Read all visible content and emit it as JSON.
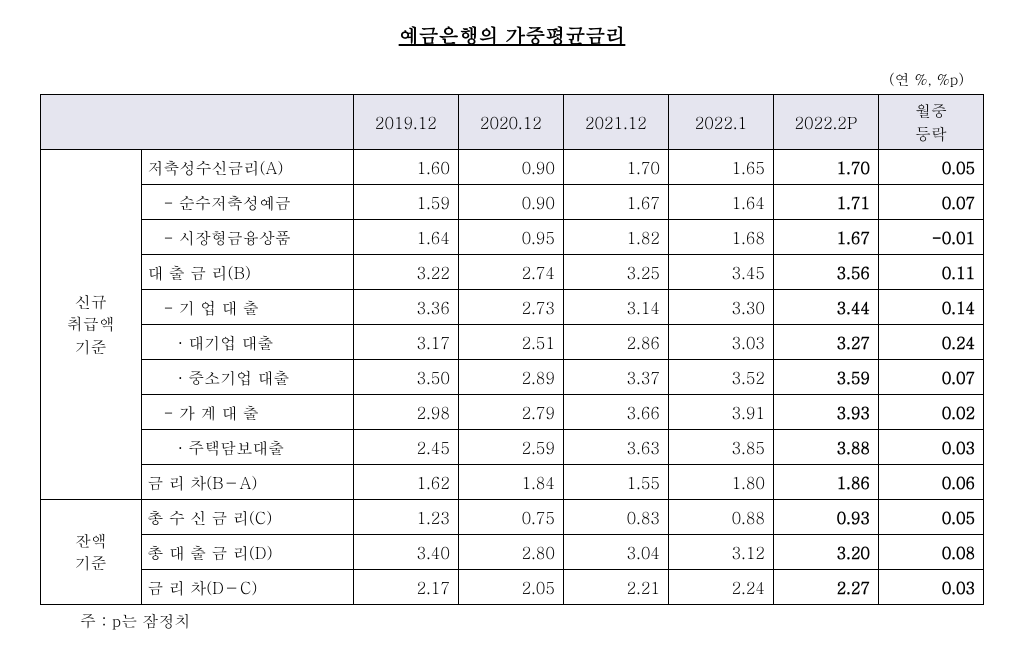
{
  "title": "예금은행의 가중평균금리",
  "unit": "(연 %, %p)",
  "columns": [
    "2019.12",
    "2020.12",
    "2021.12",
    "2022.1",
    "2022.2P",
    "월중\n등락"
  ],
  "section1_label": "신규\n취급액\n기준",
  "section2_label": "잔액\n기준",
  "rows1": [
    {
      "label": "저축성수신금리(A)",
      "indent": 0,
      "v": [
        "1.60",
        "0.90",
        "1.70",
        "1.65",
        "1.70",
        "0.05"
      ]
    },
    {
      "label": "- 순수저축성예금",
      "indent": 1,
      "v": [
        "1.59",
        "0.90",
        "1.67",
        "1.64",
        "1.71",
        "0.07"
      ]
    },
    {
      "label": "- 시장형금융상품",
      "indent": 1,
      "v": [
        "1.64",
        "0.95",
        "1.82",
        "1.68",
        "1.67",
        "-0.01"
      ]
    },
    {
      "label": "대 출 금 리(B)",
      "indent": 0,
      "v": [
        "3.22",
        "2.74",
        "3.25",
        "3.45",
        "3.56",
        "0.11"
      ]
    },
    {
      "label": "- 기 업 대 출",
      "indent": 1,
      "v": [
        "3.36",
        "2.73",
        "3.14",
        "3.30",
        "3.44",
        "0.14"
      ]
    },
    {
      "label": "· 대기업 대출",
      "indent": 2,
      "v": [
        "3.17",
        "2.51",
        "2.86",
        "3.03",
        "3.27",
        "0.24"
      ]
    },
    {
      "label": "· 중소기업 대출",
      "indent": 2,
      "v": [
        "3.50",
        "2.89",
        "3.37",
        "3.52",
        "3.59",
        "0.07"
      ]
    },
    {
      "label": "- 가 계 대 출",
      "indent": 1,
      "v": [
        "2.98",
        "2.79",
        "3.66",
        "3.91",
        "3.93",
        "0.02"
      ]
    },
    {
      "label": "· 주택담보대출",
      "indent": 2,
      "v": [
        "2.45",
        "2.59",
        "3.63",
        "3.85",
        "3.88",
        "0.03"
      ]
    },
    {
      "label": "금 리 차(B－A)",
      "indent": 0,
      "v": [
        "1.62",
        "1.84",
        "1.55",
        "1.80",
        "1.86",
        "0.06"
      ]
    }
  ],
  "rows2": [
    {
      "label": "총 수 신 금 리(C)",
      "indent": 0,
      "v": [
        "1.23",
        "0.75",
        "0.83",
        "0.88",
        "0.93",
        "0.05"
      ]
    },
    {
      "label": "총 대 출 금 리(D)",
      "indent": 0,
      "v": [
        "3.40",
        "2.80",
        "3.04",
        "3.12",
        "3.20",
        "0.08"
      ]
    },
    {
      "label": "금 리 차(D－C)",
      "indent": 0,
      "v": [
        "2.17",
        "2.05",
        "2.21",
        "2.24",
        "2.27",
        "0.03"
      ]
    }
  ],
  "note": "주 : p는 잠정치"
}
